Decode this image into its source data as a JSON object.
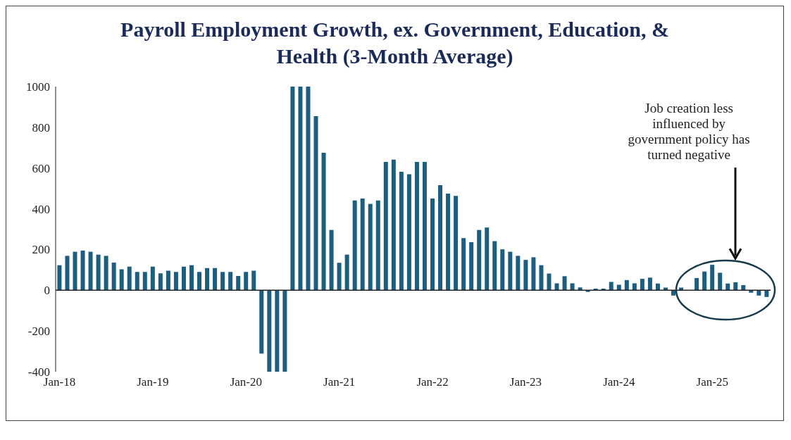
{
  "chart_data": {
    "type": "bar",
    "title": "Payroll Employment Growth, ex. Government, Education, & Health (3-Month Average)",
    "categories": [
      "Jan-18",
      null,
      null,
      null,
      null,
      null,
      null,
      null,
      null,
      null,
      null,
      null,
      "Jan-19",
      null,
      null,
      null,
      null,
      null,
      null,
      null,
      null,
      null,
      null,
      null,
      "Jan-20",
      null,
      null,
      null,
      null,
      null,
      null,
      null,
      null,
      null,
      null,
      null,
      "Jan-21",
      null,
      null,
      null,
      null,
      null,
      null,
      null,
      null,
      null,
      null,
      null,
      "Jan-22",
      null,
      null,
      null,
      null,
      null,
      null,
      null,
      null,
      null,
      null,
      null,
      "Jan-23",
      null,
      null,
      null,
      null,
      null,
      null,
      null,
      null,
      null,
      null,
      null,
      "Jan-24",
      null,
      null,
      null,
      null,
      null,
      null,
      null,
      null,
      null,
      null,
      null,
      "Jan-25",
      null,
      null,
      null,
      null,
      null,
      null,
      null
    ],
    "values": [
      123,
      169,
      189,
      195,
      189,
      175,
      169,
      136,
      103,
      116,
      90,
      90,
      116,
      83,
      96,
      90,
      116,
      123,
      90,
      109,
      109,
      90,
      90,
      70,
      90,
      96,
      -311,
      -400,
      -400,
      -400,
      1000,
      1000,
      1000,
      855,
      675,
      296,
      135,
      175,
      441,
      450,
      424,
      441,
      630,
      641,
      582,
      570,
      630,
      630,
      450,
      516,
      475,
      463,
      256,
      236,
      296,
      308,
      241,
      201,
      189,
      169,
      149,
      162,
      123,
      82,
      34,
      69,
      34,
      14,
      -8,
      8,
      8,
      41,
      27,
      50,
      34,
      56,
      62,
      33,
      13,
      -26,
      13,
      null,
      60,
      92,
      125,
      86,
      33,
      39,
      25,
      -12,
      -26,
      -33
    ],
    "color": "#1b5e80",
    "ylim": [
      -400,
      1000
    ],
    "yticks": [
      -400,
      -200,
      0,
      200,
      400,
      600,
      800,
      1000
    ],
    "annotations": [
      "Job creation less influenced by government policy has turned negative"
    ]
  }
}
